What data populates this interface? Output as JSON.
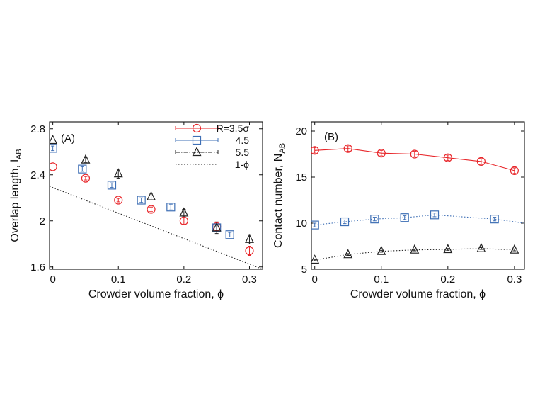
{
  "chart_data": [
    {
      "type": "scatter",
      "panel_label": "(A)",
      "xlabel": "Crowder volume fraction, ϕ",
      "ylabel": "Overlap length, l",
      "ylabel_sub": "AB",
      "xlim": [
        -0.005,
        0.32
      ],
      "ylim": [
        1.58,
        2.86
      ],
      "xticks": [
        0,
        0.1,
        0.2,
        0.3
      ],
      "yticks": [
        1.6,
        2.0,
        2.4,
        2.8
      ],
      "xtick_labels": [
        "0",
        "0.1",
        "0.2",
        "0.3"
      ],
      "ytick_labels": [
        "1.6",
        "2",
        "2.4",
        "2.8"
      ],
      "legend_position": "top-right",
      "series": [
        {
          "name": "R=3.5σ",
          "color": "#e8262a",
          "marker": "circle",
          "x": [
            0,
            0.05,
            0.1,
            0.15,
            0.2,
            0.25,
            0.3
          ],
          "y": [
            2.47,
            2.37,
            2.18,
            2.1,
            2.0,
            1.95,
            1.74
          ],
          "err": [
            0.0,
            0.015,
            0.015,
            0.02,
            0.03,
            0.04,
            0.04
          ]
        },
        {
          "name": "4.5",
          "color": "#3e6fb5",
          "marker": "square",
          "x": [
            0,
            0.045,
            0.09,
            0.135,
            0.18,
            0.25,
            0.27
          ],
          "y": [
            2.63,
            2.45,
            2.31,
            2.18,
            2.12,
            1.94,
            1.88
          ],
          "err": [
            0.02,
            0.02,
            0.02,
            0.02,
            0.025,
            0.03,
            0.02
          ]
        },
        {
          "name": "5.5",
          "color": "#222222",
          "marker": "triangle",
          "x": [
            0,
            0.05,
            0.1,
            0.15,
            0.2,
            0.25,
            0.3
          ],
          "y": [
            2.7,
            2.53,
            2.41,
            2.21,
            2.07,
            1.94,
            1.84
          ],
          "err": [
            0.0,
            0.02,
            0.04,
            0.03,
            0.03,
            0.05,
            0.04
          ]
        }
      ],
      "line": {
        "name": "1-ϕ",
        "style": "dotted",
        "color": "#222222",
        "x": [
          -0.005,
          0.32
        ],
        "y": [
          2.3,
          1.58
        ]
      }
    },
    {
      "type": "line",
      "panel_label": "(B)",
      "xlabel": "Crowder volume fraction, ϕ",
      "ylabel": "Contact number, N",
      "ylabel_sub": "AB",
      "xlim": [
        -0.005,
        0.315
      ],
      "ylim": [
        5,
        21
      ],
      "xticks": [
        0,
        0.1,
        0.2,
        0.3
      ],
      "yticks": [
        5,
        10,
        15,
        20
      ],
      "xtick_labels": [
        "0",
        "0.1",
        "0.2",
        "0.3"
      ],
      "ytick_labels": [
        "5",
        "10",
        "15",
        "20"
      ],
      "series": [
        {
          "color": "#e8262a",
          "marker": "circle",
          "style": "solid",
          "x": [
            0,
            0.05,
            0.1,
            0.15,
            0.2,
            0.25,
            0.3
          ],
          "y": [
            17.9,
            18.1,
            17.6,
            17.5,
            17.1,
            16.7,
            15.7
          ],
          "err": [
            0.3,
            0.3,
            0.3,
            0.3,
            0.3,
            0.3,
            0.3
          ]
        },
        {
          "color": "#3e6fb5",
          "marker": "square",
          "style": "dotted",
          "x": [
            0,
            0.045,
            0.09,
            0.135,
            0.18,
            0.27,
            0.315
          ],
          "y": [
            9.8,
            10.15,
            10.45,
            10.6,
            10.9,
            10.45,
            10.0
          ],
          "err": [
            0.2,
            0.2,
            0.2,
            0.2,
            0.2,
            0.2,
            0.0
          ],
          "markers": [
            true,
            true,
            true,
            true,
            true,
            true,
            false
          ]
        },
        {
          "color": "#222222",
          "marker": "triangle",
          "style": "dotted",
          "x": [
            0,
            0.05,
            0.1,
            0.15,
            0.2,
            0.25,
            0.3
          ],
          "y": [
            6.0,
            6.6,
            6.95,
            7.1,
            7.15,
            7.25,
            7.1
          ],
          "err": [
            0.1,
            0.1,
            0.1,
            0.1,
            0.1,
            0.1,
            0.1
          ]
        }
      ]
    }
  ]
}
